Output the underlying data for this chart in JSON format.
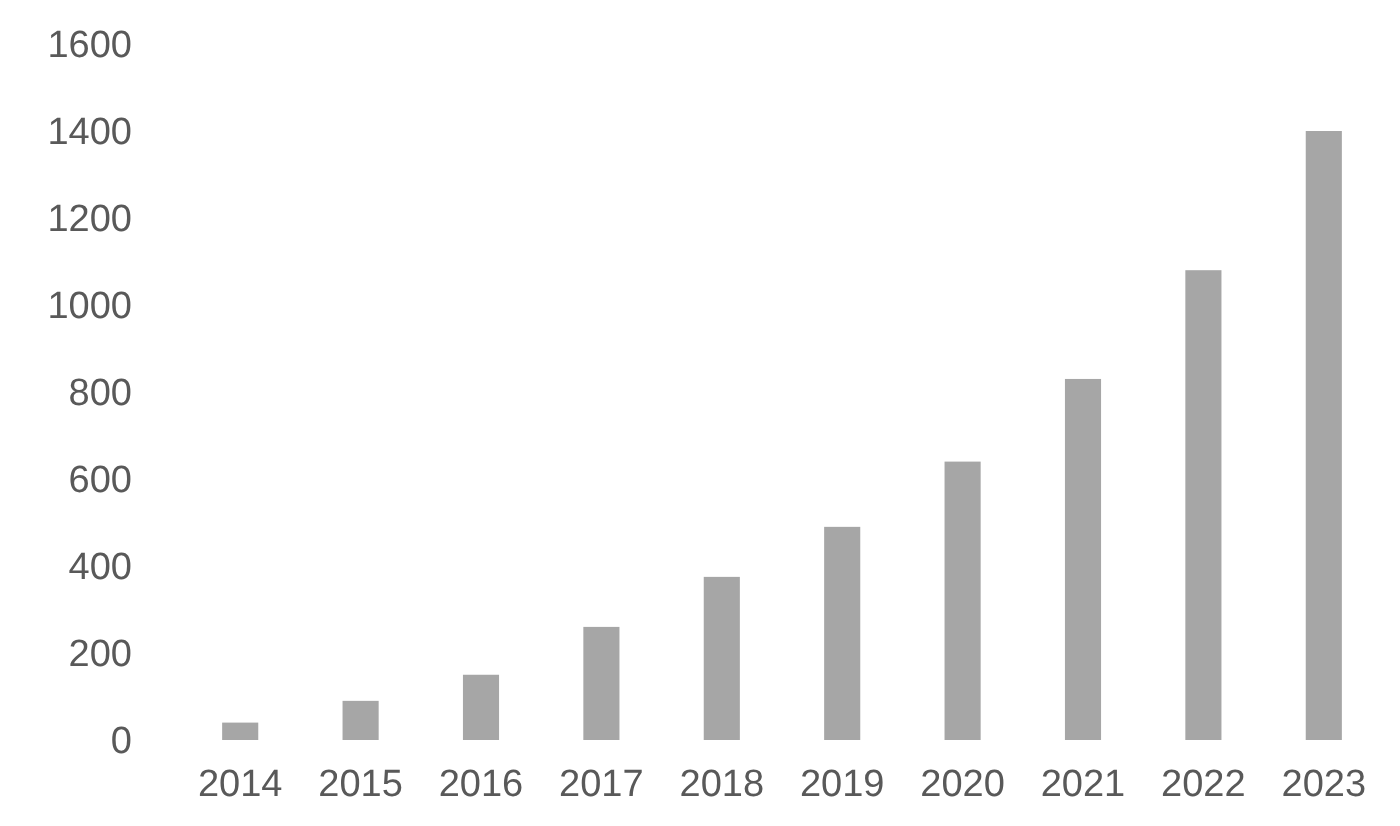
{
  "chart_data": {
    "type": "bar",
    "categories": [
      "2014",
      "2015",
      "2016",
      "2017",
      "2018",
      "2019",
      "2020",
      "2021",
      "2022",
      "2023"
    ],
    "values": [
      40,
      90,
      150,
      260,
      375,
      490,
      640,
      830,
      1080,
      1400
    ],
    "color": "#a6a6a6",
    "ylim": [
      0,
      1600
    ],
    "yticks": [
      0,
      200,
      400,
      600,
      800,
      1000,
      1200,
      1400,
      1600
    ],
    "grid": false
  }
}
